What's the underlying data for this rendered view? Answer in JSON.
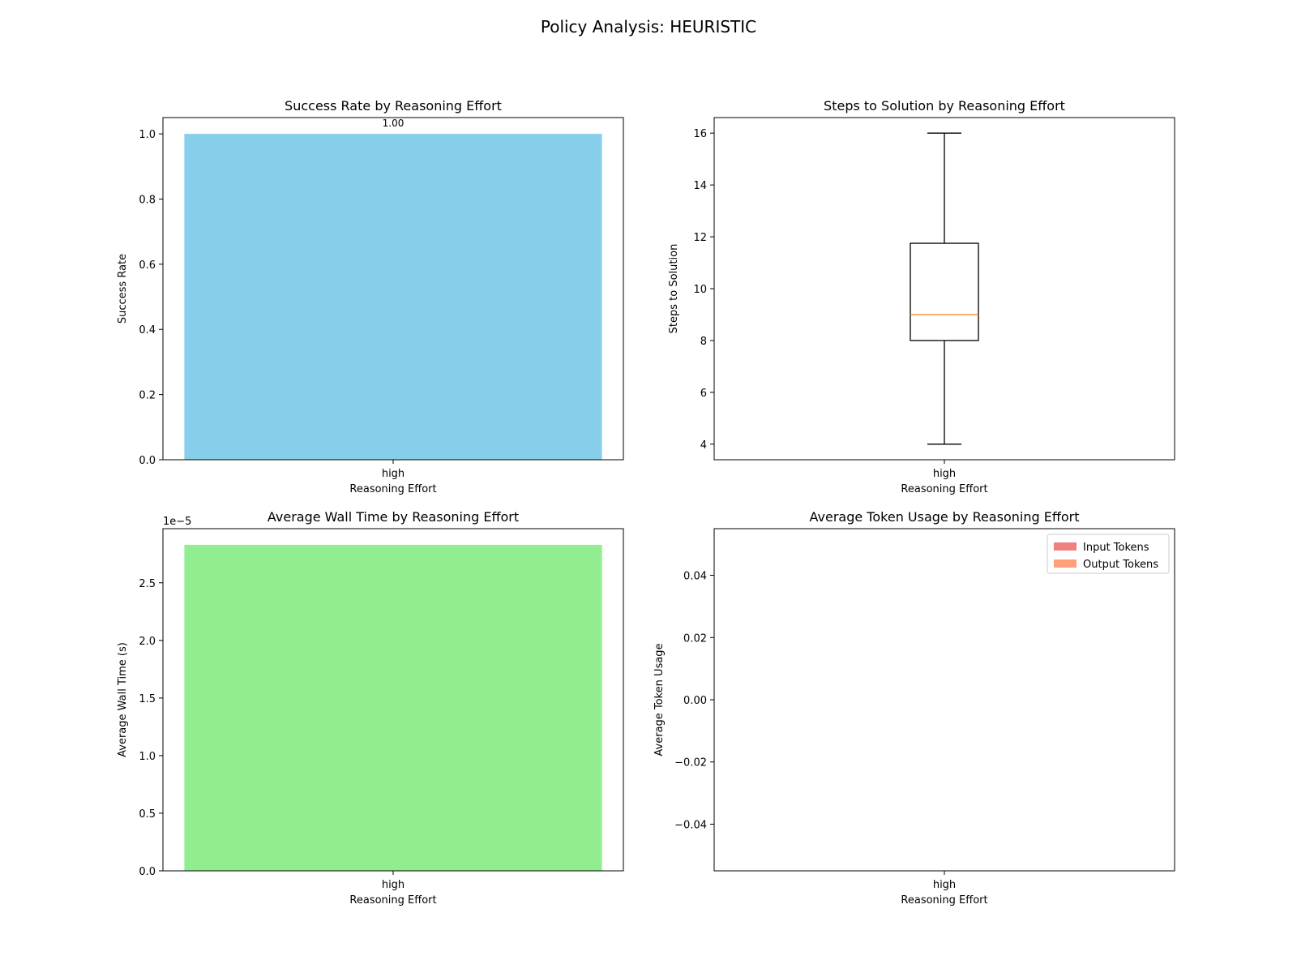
{
  "figure": {
    "suptitle": "Policy Analysis: HEURISTIC"
  },
  "chart_data": [
    {
      "type": "bar",
      "title": "Success Rate by Reasoning Effort",
      "xlabel": "Reasoning Effort",
      "ylabel": "Success Rate",
      "categories": [
        "high"
      ],
      "values": [
        1.0
      ],
      "value_labels": [
        "1.00"
      ],
      "ylim": [
        0,
        1.05
      ],
      "yticks": [
        0.0,
        0.2,
        0.4,
        0.6,
        0.8,
        1.0
      ],
      "ytick_labels": [
        "0.0",
        "0.2",
        "0.4",
        "0.6",
        "0.8",
        "1.0"
      ],
      "color": "#87ceeb",
      "grid": false
    },
    {
      "type": "box",
      "title": "Steps to Solution by Reasoning Effort",
      "xlabel": "Reasoning Effort",
      "ylabel": "Steps to Solution",
      "categories": [
        "high"
      ],
      "boxes": [
        {
          "whisker_low": 4,
          "q1": 8,
          "median": 9,
          "q3": 11.75,
          "whisker_high": 16
        }
      ],
      "ylim": [
        3.4,
        16.6
      ],
      "yticks": [
        4,
        6,
        8,
        10,
        12,
        14,
        16
      ],
      "ytick_labels": [
        "4",
        "6",
        "8",
        "10",
        "12",
        "14",
        "16"
      ],
      "median_color": "#ff7f0e",
      "grid": false
    },
    {
      "type": "bar",
      "title": "Average Wall Time by Reasoning Effort",
      "xlabel": "Reasoning Effort",
      "ylabel": "Average Wall Time (s)",
      "categories": [
        "high"
      ],
      "values": [
        2.83
      ],
      "ylim": [
        0,
        2.97
      ],
      "yticks": [
        0.0,
        0.5,
        1.0,
        1.5,
        2.0,
        2.5
      ],
      "ytick_labels": [
        "0.0",
        "0.5",
        "1.0",
        "1.5",
        "2.0",
        "2.5"
      ],
      "offset_text": "1e−5",
      "color": "#90ee90",
      "grid": false
    },
    {
      "type": "bar",
      "title": "Average Token Usage by Reasoning Effort",
      "xlabel": "Reasoning Effort",
      "ylabel": "Average Token Usage",
      "categories": [
        "high"
      ],
      "series": [
        {
          "name": "Input Tokens",
          "values": [
            0
          ],
          "color": "#f08080"
        },
        {
          "name": "Output Tokens",
          "values": [
            0
          ],
          "color": "#ffa07a"
        }
      ],
      "ylim": [
        -0.055,
        0.055
      ],
      "yticks": [
        -0.04,
        -0.02,
        0.0,
        0.02,
        0.04
      ],
      "ytick_labels": [
        "−0.04",
        "−0.02",
        "0.00",
        "0.02",
        "0.04"
      ],
      "legend": "top-right",
      "grid": false
    }
  ]
}
